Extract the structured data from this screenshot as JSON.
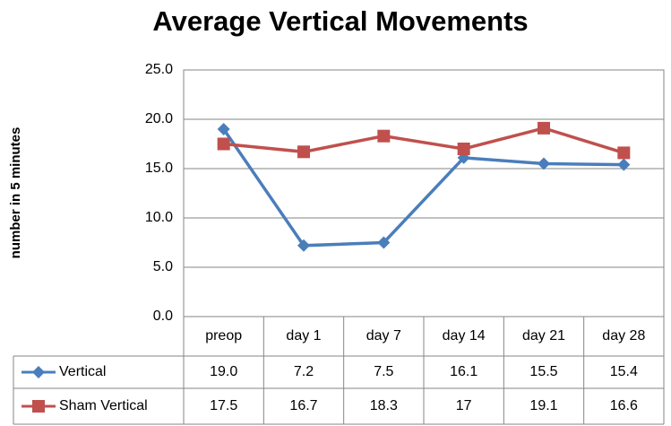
{
  "chart_data": {
    "type": "line",
    "title": "Average Vertical Movements",
    "y_label": "number in 5 minutes",
    "categories": [
      "preop",
      "day 1",
      "day 7",
      "day 14",
      "day 21",
      "day 28"
    ],
    "series": [
      {
        "name": "Vertical",
        "color": "#4a7ebb",
        "marker": "diamond",
        "values": [
          19.0,
          7.2,
          7.5,
          16.1,
          15.5,
          15.4
        ],
        "value_labels": [
          "19.0",
          "7.2",
          "7.5",
          "16.1",
          "15.5",
          "15.4"
        ]
      },
      {
        "name": "Sham Vertical",
        "color": "#c0504d",
        "marker": "square",
        "values": [
          17.5,
          16.7,
          18.3,
          17,
          19.1,
          16.6
        ]
      }
    ],
    "ylim": [
      0,
      25
    ],
    "yticks": [
      {
        "value": 0,
        "label": "0.0"
      },
      {
        "value": 5,
        "label": "5.0"
      },
      {
        "value": 10,
        "label": "10.0"
      },
      {
        "value": 15,
        "label": "15.0"
      },
      {
        "value": 20,
        "label": "20.0"
      },
      {
        "value": 25,
        "label": "25.0"
      }
    ],
    "grid": true,
    "data_table": true
  }
}
